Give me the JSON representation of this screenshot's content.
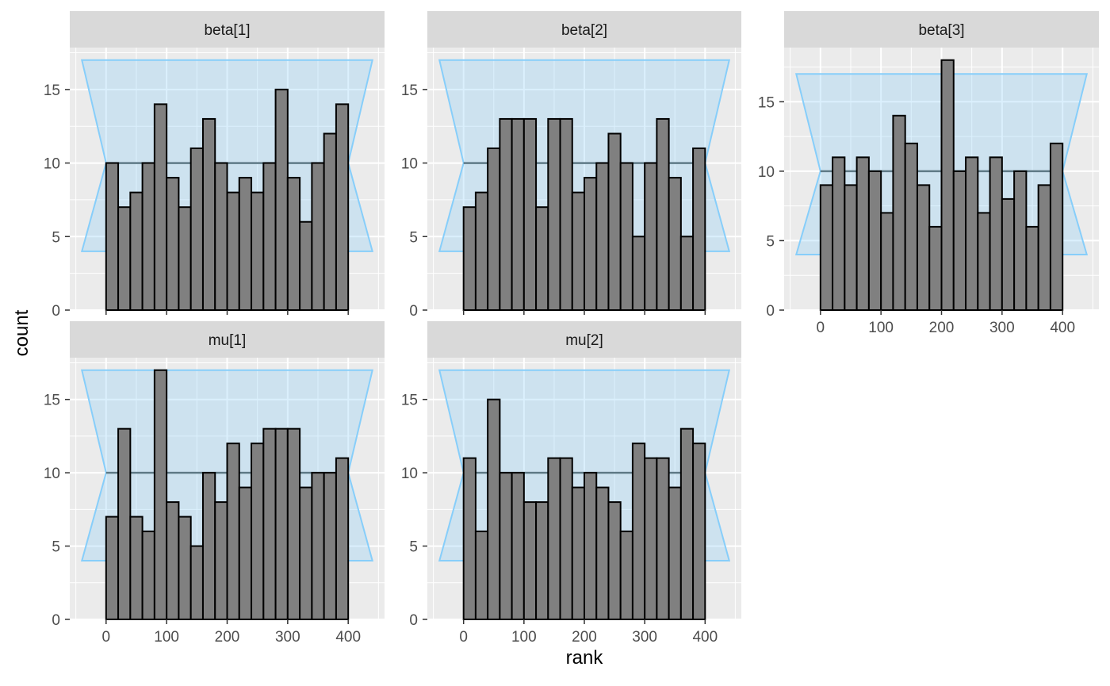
{
  "chart_data": {
    "type": "bar",
    "subtype": "faceted rank histogram",
    "xlabel": "rank",
    "ylabel": "count",
    "bin_width": 20,
    "band": {
      "lower": 4,
      "mid": 10,
      "upper": 17,
      "color": "#87cefa"
    },
    "bar_fill": "#808080",
    "panel_background": "#ebebeb",
    "strip_background": "#d9d9d9",
    "x_ticks": [
      0,
      100,
      200,
      300,
      400
    ],
    "xlim": [
      -60,
      460
    ],
    "panels": [
      {
        "name": "beta[1]",
        "ylim": [
          0,
          17.85
        ],
        "y_ticks": [
          0,
          5,
          10,
          15
        ],
        "bin_starts": [
          0,
          20,
          40,
          60,
          80,
          100,
          120,
          140,
          160,
          180,
          200,
          220,
          240,
          260,
          280,
          300,
          320,
          340,
          360,
          380
        ],
        "values": [
          10,
          7,
          8,
          10,
          14,
          9,
          7,
          11,
          13,
          10,
          8,
          9,
          8,
          10,
          15,
          9,
          6,
          10,
          12,
          14
        ]
      },
      {
        "name": "beta[2]",
        "ylim": [
          0,
          17.85
        ],
        "y_ticks": [
          0,
          5,
          10,
          15
        ],
        "bin_starts": [
          0,
          20,
          40,
          60,
          80,
          100,
          120,
          140,
          160,
          180,
          200,
          220,
          240,
          260,
          280,
          300,
          320,
          340,
          360,
          380
        ],
        "values": [
          7,
          8,
          11,
          13,
          13,
          13,
          7,
          13,
          13,
          8,
          9,
          10,
          12,
          10,
          5,
          10,
          13,
          9,
          5,
          11
        ]
      },
      {
        "name": "beta[3]",
        "ylim": [
          0,
          18.9
        ],
        "y_ticks": [
          0,
          5,
          10,
          15
        ],
        "bin_starts": [
          0,
          20,
          40,
          60,
          80,
          100,
          120,
          140,
          160,
          180,
          200,
          220,
          240,
          260,
          280,
          300,
          320,
          340,
          360,
          380
        ],
        "values": [
          9,
          11,
          9,
          11,
          10,
          7,
          14,
          12,
          9,
          6,
          18,
          10,
          11,
          7,
          11,
          8,
          10,
          6,
          9,
          12
        ]
      },
      {
        "name": "mu[1]",
        "ylim": [
          0,
          17.85
        ],
        "y_ticks": [
          0,
          5,
          10,
          15
        ],
        "bin_starts": [
          0,
          20,
          40,
          60,
          80,
          100,
          120,
          140,
          160,
          180,
          200,
          220,
          240,
          260,
          280,
          300,
          320,
          340,
          360,
          380
        ],
        "values": [
          7,
          13,
          7,
          6,
          17,
          8,
          7,
          5,
          10,
          8,
          12,
          9,
          12,
          13,
          13,
          13,
          9,
          10,
          10,
          11
        ]
      },
      {
        "name": "mu[2]",
        "ylim": [
          0,
          17.85
        ],
        "y_ticks": [
          0,
          5,
          10,
          15
        ],
        "bin_starts": [
          0,
          20,
          40,
          60,
          80,
          100,
          120,
          140,
          160,
          180,
          200,
          220,
          240,
          260,
          280,
          300,
          320,
          340,
          360,
          380
        ],
        "values": [
          11,
          6,
          15,
          10,
          10,
          8,
          8,
          11,
          11,
          9,
          10,
          9,
          8,
          6,
          12,
          11,
          11,
          9,
          13,
          12
        ]
      }
    ]
  }
}
